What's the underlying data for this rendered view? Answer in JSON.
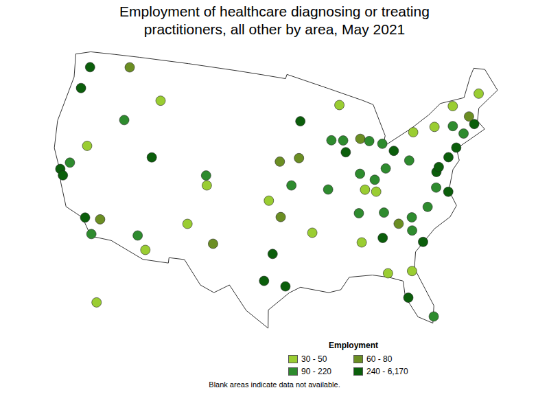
{
  "chart_data": {
    "type": "map",
    "title": "Employment of healthcare diagnosing or treating practitioners, all other by area, May 2021",
    "legend_title": "Employment",
    "bins": [
      {
        "label": "30 - 50",
        "color": "#9acd32"
      },
      {
        "label": "60 - 80",
        "color": "#6b8e23"
      },
      {
        "label": "90 - 220",
        "color": "#2e8b2e"
      },
      {
        "label": "240 - 6,170",
        "color": "#0b5e0b"
      }
    ],
    "caption": "Blank areas indicate data not available.",
    "regions": [
      {
        "lon": -122.3,
        "lat": 47.6,
        "bin": 3
      },
      {
        "lon": -122.7,
        "lat": 45.5,
        "bin": 3
      },
      {
        "lon": -117.0,
        "lat": 48.5,
        "bin": 1
      },
      {
        "lon": -116.2,
        "lat": 43.6,
        "bin": 2
      },
      {
        "lon": -112.0,
        "lat": 46.0,
        "bin": 0
      },
      {
        "lon": -120.0,
        "lat": 40.5,
        "bin": 0
      },
      {
        "lon": -121.5,
        "lat": 38.6,
        "bin": 2
      },
      {
        "lon": -122.4,
        "lat": 37.8,
        "bin": 3
      },
      {
        "lon": -121.9,
        "lat": 37.3,
        "bin": 3
      },
      {
        "lon": -118.2,
        "lat": 34.05,
        "bin": 3
      },
      {
        "lon": -116.5,
        "lat": 34.2,
        "bin": 1
      },
      {
        "lon": -117.1,
        "lat": 32.7,
        "bin": 2
      },
      {
        "lon": -111.9,
        "lat": 40.7,
        "bin": 3
      },
      {
        "lon": -105.0,
        "lat": 39.7,
        "bin": 2
      },
      {
        "lon": -104.8,
        "lat": 38.8,
        "bin": 0
      },
      {
        "lon": -112.0,
        "lat": 33.4,
        "bin": 2
      },
      {
        "lon": -110.9,
        "lat": 32.2,
        "bin": 0
      },
      {
        "lon": -106.6,
        "lat": 35.1,
        "bin": 0
      },
      {
        "lon": -103.5,
        "lat": 33.5,
        "bin": 1
      },
      {
        "lon": -97.3,
        "lat": 37.7,
        "bin": 0
      },
      {
        "lon": -96.0,
        "lat": 41.3,
        "bin": 1
      },
      {
        "lon": -94.6,
        "lat": 39.1,
        "bin": 2
      },
      {
        "lon": -96.8,
        "lat": 32.8,
        "bin": 3
      },
      {
        "lon": -97.7,
        "lat": 30.3,
        "bin": 3
      },
      {
        "lon": -95.4,
        "lat": 29.8,
        "bin": 3
      },
      {
        "lon": -95.9,
        "lat": 36.2,
        "bin": 1
      },
      {
        "lon": -92.3,
        "lat": 34.7,
        "bin": 0
      },
      {
        "lon": -93.3,
        "lat": 45.0,
        "bin": 3
      },
      {
        "lon": -88.0,
        "lat": 46.3,
        "bin": 0
      },
      {
        "lon": -89.4,
        "lat": 43.1,
        "bin": 2
      },
      {
        "lon": -87.9,
        "lat": 43.0,
        "bin": 2
      },
      {
        "lon": -87.7,
        "lat": 41.9,
        "bin": 3
      },
      {
        "lon": -93.6,
        "lat": 41.6,
        "bin": 1
      },
      {
        "lon": -90.2,
        "lat": 38.6,
        "bin": 2
      },
      {
        "lon": -86.2,
        "lat": 39.8,
        "bin": 2
      },
      {
        "lon": -83.0,
        "lat": 42.3,
        "bin": 2
      },
      {
        "lon": -85.7,
        "lat": 43.0,
        "bin": 1
      },
      {
        "lon": -84.6,
        "lat": 42.7,
        "bin": 2
      },
      {
        "lon": -83.0,
        "lat": 40.0,
        "bin": 2
      },
      {
        "lon": -81.7,
        "lat": 41.5,
        "bin": 3
      },
      {
        "lon": -80.0,
        "lat": 40.4,
        "bin": 2
      },
      {
        "lon": -84.5,
        "lat": 39.1,
        "bin": 2
      },
      {
        "lon": -85.8,
        "lat": 38.3,
        "bin": 0
      },
      {
        "lon": -84.5,
        "lat": 38.0,
        "bin": 0
      },
      {
        "lon": -86.8,
        "lat": 36.2,
        "bin": 2
      },
      {
        "lon": -83.9,
        "lat": 36.0,
        "bin": 2
      },
      {
        "lon": -86.8,
        "lat": 33.5,
        "bin": 0
      },
      {
        "lon": -84.4,
        "lat": 33.7,
        "bin": 3
      },
      {
        "lon": -80.8,
        "lat": 35.2,
        "bin": 2
      },
      {
        "lon": -78.8,
        "lat": 35.9,
        "bin": 2
      },
      {
        "lon": -82.4,
        "lat": 34.8,
        "bin": 1
      },
      {
        "lon": -81.0,
        "lat": 34.0,
        "bin": 2
      },
      {
        "lon": -80.0,
        "lat": 32.8,
        "bin": 3
      },
      {
        "lon": -77.4,
        "lat": 37.5,
        "bin": 2
      },
      {
        "lon": -76.1,
        "lat": 36.9,
        "bin": 3
      },
      {
        "lon": -77.0,
        "lat": 38.9,
        "bin": 3
      },
      {
        "lon": -76.6,
        "lat": 39.3,
        "bin": 3
      },
      {
        "lon": -75.2,
        "lat": 40.0,
        "bin": 3
      },
      {
        "lon": -74.0,
        "lat": 40.7,
        "bin": 3
      },
      {
        "lon": -72.7,
        "lat": 41.8,
        "bin": 2
      },
      {
        "lon": -71.1,
        "lat": 42.4,
        "bin": 3
      },
      {
        "lon": -73.8,
        "lat": 42.7,
        "bin": 2
      },
      {
        "lon": -76.1,
        "lat": 43.0,
        "bin": 0
      },
      {
        "lon": -78.9,
        "lat": 42.9,
        "bin": 0
      },
      {
        "lon": -69.5,
        "lat": 45.0,
        "bin": 0
      },
      {
        "lon": -71.5,
        "lat": 43.2,
        "bin": 1
      },
      {
        "lon": -73.2,
        "lat": 44.5,
        "bin": 0
      },
      {
        "lon": -81.7,
        "lat": 30.3,
        "bin": 0
      },
      {
        "lon": -84.3,
        "lat": 30.4,
        "bin": 0
      },
      {
        "lon": -82.5,
        "lat": 27.9,
        "bin": 3
      },
      {
        "lon": -80.2,
        "lat": 25.8,
        "bin": 2
      },
      {
        "lon": -150.0,
        "lat": 61.5,
        "bin": 0
      }
    ]
  }
}
